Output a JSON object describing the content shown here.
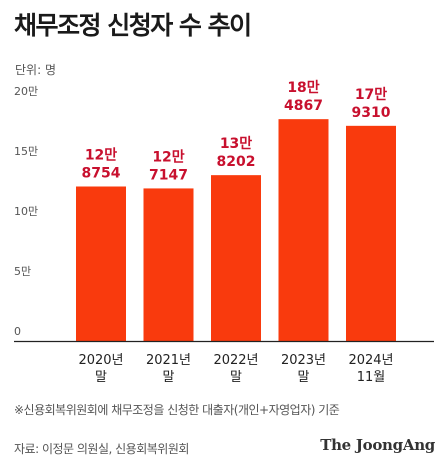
{
  "title": "채무조정 신청자 수 추이",
  "unit": "단위: 명",
  "note": "※신용회복위원회에 채무조정을 신청한 대출자(개인+자영업자) 기준",
  "source": "자료: 이정문 의원실, 신용회복위원회",
  "logo": "The JoongAng",
  "colors": {
    "bar": "#f93a0d",
    "label": "#c8102e",
    "axis": "#222222",
    "tick": "#555555"
  },
  "chart_data": {
    "type": "bar",
    "title": "채무조정 신청자 수 추이",
    "ylabel": "단위: 명",
    "ylim": [
      0,
      200000
    ],
    "yticks": [
      "0",
      "5만",
      "10만",
      "15만",
      "20만"
    ],
    "ytick_values": [
      0,
      50000,
      100000,
      150000,
      200000
    ],
    "categories": [
      {
        "line1": "2020년",
        "line2": "말"
      },
      {
        "line1": "2021년",
        "line2": "말"
      },
      {
        "line1": "2022년",
        "line2": "말"
      },
      {
        "line1": "2023년",
        "line2": "말"
      },
      {
        "line1": "2024년",
        "line2": "11월"
      }
    ],
    "values": [
      128754,
      127147,
      138202,
      184867,
      179310
    ],
    "labels": [
      {
        "line1": "12만",
        "line2": "8754"
      },
      {
        "line1": "12만",
        "line2": "7147"
      },
      {
        "line1": "13만",
        "line2": "8202"
      },
      {
        "line1": "18만",
        "line2": "4867"
      },
      {
        "line1": "17만",
        "line2": "9310"
      }
    ],
    "grid": false
  }
}
